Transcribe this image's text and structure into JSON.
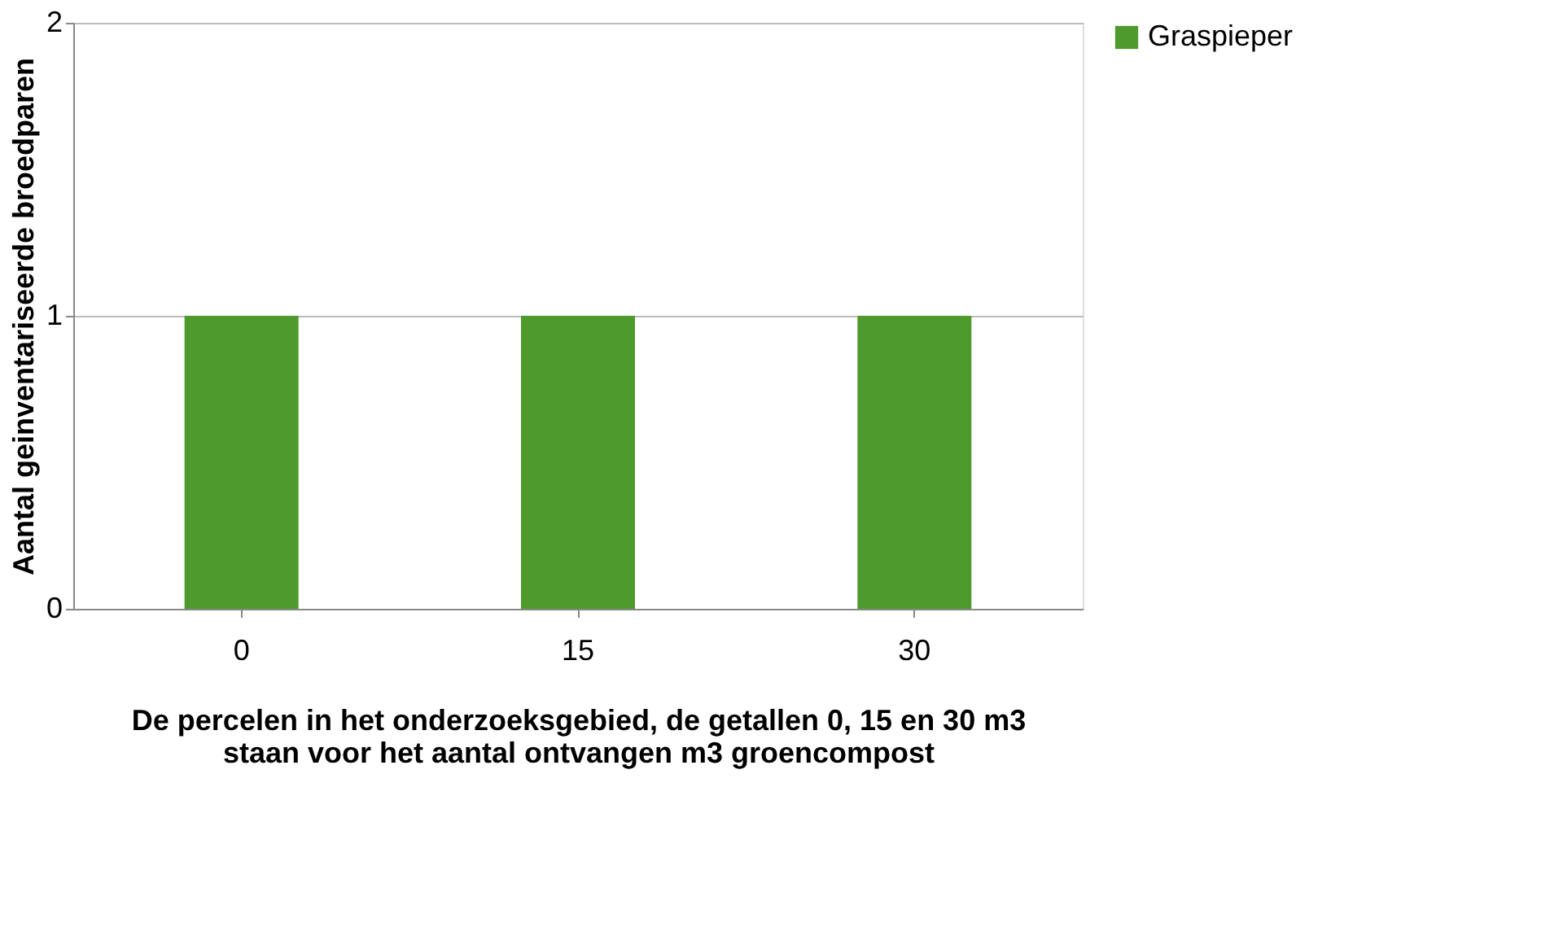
{
  "chart_data": {
    "type": "bar",
    "xlabel": "De percelen in het onderzoeksgebied, de getallen 0, 15 en 30 m3 staan voor het aantal ontvangen m3 groencompost",
    "ylabel": "Aantal geinventariseerde broedparen",
    "categories": [
      "0",
      "15",
      "30"
    ],
    "series": [
      {
        "name": "Graspieper",
        "color": "#4e9a2c",
        "values": [
          1,
          1,
          1
        ]
      }
    ],
    "ylim": [
      0,
      2
    ],
    "yticks": [
      0,
      1,
      2
    ],
    "grid": "y",
    "legend": "right"
  }
}
